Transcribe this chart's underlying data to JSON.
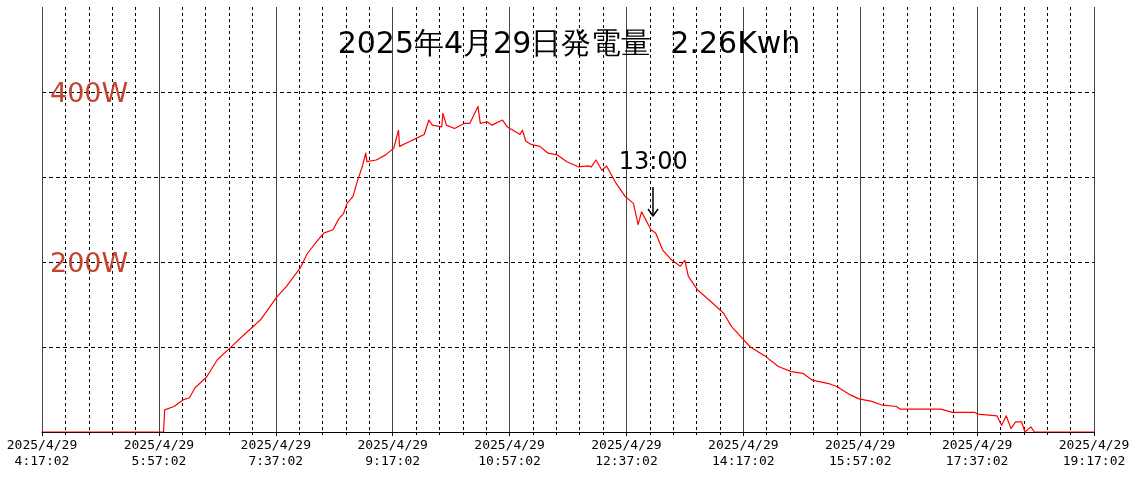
{
  "chart_data": {
    "type": "line",
    "title": "2025年4月29日発電量  2.26Kwh",
    "x": [
      "2025-04-29T04:17:02",
      "2025-04-29T05:56",
      "2025-04-29T06:01",
      "2025-04-29T06:02",
      "2025-04-29T06:10",
      "2025-04-29T06:18",
      "2025-04-29T06:23",
      "2025-04-29T06:28",
      "2025-04-29T06:38",
      "2025-04-29T06:47",
      "2025-04-29T06:58",
      "2025-04-29T07:08",
      "2025-04-29T07:16",
      "2025-04-29T07:24",
      "2025-04-29T07:38",
      "2025-04-29T07:46",
      "2025-04-29T07:58",
      "2025-04-29T08:04",
      "2025-04-29T08:12",
      "2025-04-29T08:18",
      "2025-04-29T08:26",
      "2025-04-29T08:31",
      "2025-04-29T08:35",
      "2025-04-29T08:38",
      "2025-04-29T08:43",
      "2025-04-29T08:47",
      "2025-04-29T08:51",
      "2025-04-29T08:54",
      "2025-04-29T08:55",
      "2025-04-29T09:03",
      "2025-04-29T09:11",
      "2025-04-29T09:18",
      "2025-04-29T09:22",
      "2025-04-29T09:23",
      "2025-04-29T09:32",
      "2025-04-29T09:38",
      "2025-04-29T09:44",
      "2025-04-29T09:48",
      "2025-04-29T09:51",
      "2025-04-29T09:59",
      "2025-04-29T10:00",
      "2025-04-29T10:03",
      "2025-04-29T10:10",
      "2025-04-29T10:18",
      "2025-04-29T10:23",
      "2025-04-29T10:30",
      "2025-04-29T10:32",
      "2025-04-29T10:38",
      "2025-04-29T10:42",
      "2025-04-29T10:51",
      "2025-04-29T10:55",
      "2025-04-29T11:00",
      "2025-04-29T11:06",
      "2025-04-29T11:08",
      "2025-04-29T11:11",
      "2025-04-29T11:16",
      "2025-04-29T11:23",
      "2025-04-29T11:30",
      "2025-04-29T11:38",
      "2025-04-29T11:46",
      "2025-04-29T11:56",
      "2025-04-29T12:04",
      "2025-04-29T12:07",
      "2025-04-29T12:11",
      "2025-04-29T12:16",
      "2025-04-29T12:20",
      "2025-04-29T12:28",
      "2025-04-29T12:36",
      "2025-04-29T12:43",
      "2025-04-29T12:47",
      "2025-04-29T12:50",
      "2025-04-29T12:58",
      "2025-04-29T13:02",
      "2025-04-29T13:08",
      "2025-04-29T13:16",
      "2025-04-29T13:23",
      "2025-04-29T13:27",
      "2025-04-29T13:30",
      "2025-04-29T13:38",
      "2025-04-29T13:48",
      "2025-04-29T14:00",
      "2025-04-29T14:07",
      "2025-04-29T14:15",
      "2025-04-29T14:23",
      "2025-04-29T14:36",
      "2025-04-29T14:47",
      "2025-04-29T14:58",
      "2025-04-29T15:08",
      "2025-04-29T15:16",
      "2025-04-29T15:30",
      "2025-04-29T15:38",
      "2025-04-29T15:40",
      "2025-04-29T15:48",
      "2025-04-29T15:56",
      "2025-04-29T16:07",
      "2025-04-29T16:15",
      "2025-04-29T16:28",
      "2025-04-29T16:31",
      "2025-04-29T17:06",
      "2025-04-29T17:16",
      "2025-04-29T17:35",
      "2025-04-29T17:38",
      "2025-04-29T17:54",
      "2025-04-29T17:58",
      "2025-04-29T18:02",
      "2025-04-29T18:06",
      "2025-04-29T18:10",
      "2025-04-29T18:15",
      "2025-04-29T18:18",
      "2025-04-29T18:23",
      "2025-04-29T18:26",
      "2025-04-29T19:17:02"
    ],
    "series": [
      {
        "color": "#ff0000",
        "values": [
          0,
          0,
          0,
          26,
          30,
          38,
          40,
          52,
          65,
          85,
          99,
          112,
          122,
          132,
          159,
          171,
          193,
          210,
          224,
          234,
          238,
          251,
          257,
          269,
          277,
          296,
          312,
          328,
          318,
          320,
          326,
          334,
          355,
          336,
          342,
          346,
          350,
          367,
          361,
          359,
          375,
          361,
          357,
          363,
          363,
          383,
          363,
          365,
          361,
          367,
          359,
          355,
          350,
          355,
          342,
          338,
          336,
          328,
          326,
          318,
          312,
          313,
          312,
          320,
          308,
          313,
          293,
          277,
          269,
          244,
          259,
          238,
          234,
          214,
          202,
          195,
          202,
          183,
          167,
          155,
          140,
          124,
          112,
          100,
          89,
          77,
          71,
          69,
          61,
          57,
          53,
          51,
          44,
          39,
          36,
          32,
          30,
          27,
          27,
          23,
          23,
          21,
          19,
          8,
          19,
          4,
          12,
          12,
          0,
          6,
          0,
          0
        ]
      }
    ],
    "xlim": [
      "2025-04-29T04:17:02",
      "2025-04-29T19:17:02"
    ],
    "xticks": [
      {
        "value": "2025-04-29T04:17:02",
        "label": "2025/4/29\n4:17:02"
      },
      {
        "value": "2025-04-29T04:37:02",
        "label": null
      },
      {
        "value": "2025-04-29T04:57:02",
        "label": null
      },
      {
        "value": "2025-04-29T05:17:02",
        "label": null
      },
      {
        "value": "2025-04-29T05:37:02",
        "label": null
      },
      {
        "value": "2025-04-29T05:57:02",
        "label": "2025/4/29\n5:57:02"
      },
      {
        "value": "2025-04-29T06:17:02",
        "label": null
      },
      {
        "value": "2025-04-29T06:37:02",
        "label": null
      },
      {
        "value": "2025-04-29T06:57:02",
        "label": null
      },
      {
        "value": "2025-04-29T07:17:02",
        "label": null
      },
      {
        "value": "2025-04-29T07:37:02",
        "label": "2025/4/29\n7:37:02"
      },
      {
        "value": "2025-04-29T07:57:02",
        "label": null
      },
      {
        "value": "2025-04-29T08:17:02",
        "label": null
      },
      {
        "value": "2025-04-29T08:37:02",
        "label": null
      },
      {
        "value": "2025-04-29T08:57:02",
        "label": null
      },
      {
        "value": "2025-04-29T09:17:02",
        "label": "2025/4/29\n9:17:02"
      },
      {
        "value": "2025-04-29T09:37:02",
        "label": null
      },
      {
        "value": "2025-04-29T09:57:02",
        "label": null
      },
      {
        "value": "2025-04-29T10:17:02",
        "label": null
      },
      {
        "value": "2025-04-29T10:37:02",
        "label": null
      },
      {
        "value": "2025-04-29T10:57:02",
        "label": "2025/4/29\n10:57:02"
      },
      {
        "value": "2025-04-29T11:17:02",
        "label": null
      },
      {
        "value": "2025-04-29T11:37:02",
        "label": null
      },
      {
        "value": "2025-04-29T11:57:02",
        "label": null
      },
      {
        "value": "2025-04-29T12:17:02",
        "label": null
      },
      {
        "value": "2025-04-29T12:37:02",
        "label": "2025/4/29\n12:37:02"
      },
      {
        "value": "2025-04-29T12:57:02",
        "label": null
      },
      {
        "value": "2025-04-29T13:17:02",
        "label": null
      },
      {
        "value": "2025-04-29T13:37:02",
        "label": null
      },
      {
        "value": "2025-04-29T13:57:02",
        "label": null
      },
      {
        "value": "2025-04-29T14:17:02",
        "label": "2025/4/29\n14:17:02"
      },
      {
        "value": "2025-04-29T14:37:02",
        "label": null
      },
      {
        "value": "2025-04-29T14:57:02",
        "label": null
      },
      {
        "value": "2025-04-29T15:17:02",
        "label": null
      },
      {
        "value": "2025-04-29T15:37:02",
        "label": null
      },
      {
        "value": "2025-04-29T15:57:02",
        "label": "2025/4/29\n15:57:02"
      },
      {
        "value": "2025-04-29T16:17:02",
        "label": null
      },
      {
        "value": "2025-04-29T16:37:02",
        "label": null
      },
      {
        "value": "2025-04-29T16:57:02",
        "label": null
      },
      {
        "value": "2025-04-29T17:17:02",
        "label": null
      },
      {
        "value": "2025-04-29T17:37:02",
        "label": "2025/4/29\n17:37:02"
      },
      {
        "value": "2025-04-29T17:57:02",
        "label": null
      },
      {
        "value": "2025-04-29T18:17:02",
        "label": null
      },
      {
        "value": "2025-04-29T18:37:02",
        "label": null
      },
      {
        "value": "2025-04-29T18:57:02",
        "label": null
      },
      {
        "value": "2025-04-29T19:17:02",
        "label": "2025/4/29\n19:17:02"
      }
    ],
    "ylim": [
      0,
      500
    ],
    "yticks": [
      {
        "value": 100,
        "label": null
      },
      {
        "value": 200,
        "label": "200W"
      },
      {
        "value": 300,
        "label": null
      },
      {
        "value": 400,
        "label": "400W"
      }
    ],
    "grid": true,
    "marker": "none",
    "line_style": "solid",
    "annotations": [
      {
        "text": "13:00",
        "x": "2025-04-29T13:00",
        "y": 236
      }
    ]
  }
}
